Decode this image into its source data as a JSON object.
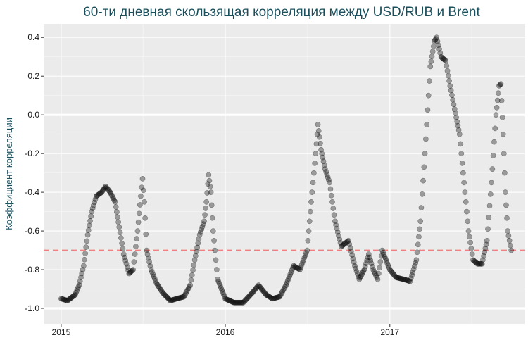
{
  "chart_data": {
    "type": "scatter",
    "title": "60-ти дневная скользящая корреляция между USD/RUB и Brent",
    "xlabel": "",
    "ylabel": "Коэффициент корреляции",
    "x_ticks": [
      "2015",
      "2016",
      "2017"
    ],
    "y_ticks": [
      "-1.0",
      "-0.8",
      "-0.6",
      "-0.4",
      "-0.2",
      "0.0",
      "0.2",
      "0.4"
    ],
    "xlim": [
      "2014-11-23",
      "2017-10-29"
    ],
    "ylim": [
      -1.08,
      0.47
    ],
    "grid": true,
    "reference_lines": [
      {
        "y": 0.0,
        "style": "solid",
        "color": "#ffffff"
      },
      {
        "y": -1.0,
        "style": "solid",
        "color": "#ffffff"
      },
      {
        "y": -0.7,
        "style": "dashed",
        "color": "#f08080"
      }
    ],
    "series": [
      {
        "points": [
          [
            "2015-01-01",
            -0.95
          ],
          [
            "2015-01-15",
            -0.96
          ],
          [
            "2015-02-01",
            -0.93
          ],
          [
            "2015-02-10",
            -0.88
          ],
          [
            "2015-02-20",
            -0.78
          ],
          [
            "2015-03-01",
            -0.62
          ],
          [
            "2015-03-10",
            -0.5
          ],
          [
            "2015-03-20",
            -0.42
          ],
          [
            "2015-04-01",
            -0.4
          ],
          [
            "2015-04-10",
            -0.37
          ],
          [
            "2015-04-20",
            -0.4
          ],
          [
            "2015-05-01",
            -0.45
          ],
          [
            "2015-05-10",
            -0.58
          ],
          [
            "2015-05-20",
            -0.72
          ],
          [
            "2015-06-01",
            -0.82
          ],
          [
            "2015-06-10",
            -0.8
          ],
          [
            "2015-06-20",
            -0.6
          ],
          [
            "2015-06-27",
            -0.42
          ],
          [
            "2015-07-01",
            -0.33
          ],
          [
            "2015-07-05",
            -0.45
          ],
          [
            "2015-07-10",
            -0.7
          ],
          [
            "2015-07-20",
            -0.8
          ],
          [
            "2015-08-01",
            -0.87
          ],
          [
            "2015-08-15",
            -0.92
          ],
          [
            "2015-09-01",
            -0.96
          ],
          [
            "2015-09-15",
            -0.95
          ],
          [
            "2015-10-01",
            -0.94
          ],
          [
            "2015-10-15",
            -0.88
          ],
          [
            "2015-10-25",
            -0.75
          ],
          [
            "2015-11-05",
            -0.62
          ],
          [
            "2015-11-15",
            -0.55
          ],
          [
            "2015-11-20",
            -0.45
          ],
          [
            "2015-11-25",
            -0.31
          ],
          [
            "2015-11-30",
            -0.4
          ],
          [
            "2015-12-05",
            -0.6
          ],
          [
            "2015-12-15",
            -0.85
          ],
          [
            "2016-01-01",
            -0.95
          ],
          [
            "2016-01-20",
            -0.97
          ],
          [
            "2016-02-10",
            -0.97
          ],
          [
            "2016-03-01",
            -0.92
          ],
          [
            "2016-03-15",
            -0.88
          ],
          [
            "2016-04-01",
            -0.93
          ],
          [
            "2016-04-15",
            -0.95
          ],
          [
            "2016-05-01",
            -0.94
          ],
          [
            "2016-05-15",
            -0.88
          ],
          [
            "2016-06-01",
            -0.78
          ],
          [
            "2016-06-15",
            -0.8
          ],
          [
            "2016-07-01",
            -0.7
          ],
          [
            "2016-07-10",
            -0.45
          ],
          [
            "2016-07-20",
            -0.2
          ],
          [
            "2016-07-25",
            -0.05
          ],
          [
            "2016-08-01",
            -0.18
          ],
          [
            "2016-08-10",
            -0.28
          ],
          [
            "2016-08-20",
            -0.35
          ],
          [
            "2016-09-01",
            -0.55
          ],
          [
            "2016-09-15",
            -0.68
          ],
          [
            "2016-10-01",
            -0.65
          ],
          [
            "2016-10-15",
            -0.78
          ],
          [
            "2016-10-25",
            -0.85
          ],
          [
            "2016-11-05",
            -0.8
          ],
          [
            "2016-11-15",
            -0.72
          ],
          [
            "2016-11-25",
            -0.8
          ],
          [
            "2016-12-05",
            -0.85
          ],
          [
            "2016-12-15",
            -0.7
          ],
          [
            "2017-01-01",
            -0.8
          ],
          [
            "2017-01-15",
            -0.84
          ],
          [
            "2017-02-01",
            -0.85
          ],
          [
            "2017-02-15",
            -0.86
          ],
          [
            "2017-03-01",
            -0.75
          ],
          [
            "2017-03-10",
            -0.55
          ],
          [
            "2017-03-20",
            -0.2
          ],
          [
            "2017-04-01",
            0.25
          ],
          [
            "2017-04-10",
            0.38
          ],
          [
            "2017-04-15",
            0.4
          ],
          [
            "2017-04-25",
            0.3
          ],
          [
            "2017-05-05",
            0.28
          ],
          [
            "2017-05-15",
            0.15
          ],
          [
            "2017-05-25",
            0.03
          ],
          [
            "2017-06-05",
            -0.1
          ],
          [
            "2017-06-15",
            -0.35
          ],
          [
            "2017-06-25",
            -0.6
          ],
          [
            "2017-07-05",
            -0.75
          ],
          [
            "2017-07-15",
            -0.77
          ],
          [
            "2017-07-25",
            -0.77
          ],
          [
            "2017-08-05",
            -0.65
          ],
          [
            "2017-08-15",
            -0.35
          ],
          [
            "2017-08-25",
            0.0
          ],
          [
            "2017-09-01",
            0.15
          ],
          [
            "2017-09-05",
            0.16
          ],
          [
            "2017-09-10",
            -0.1
          ],
          [
            "2017-09-15",
            -0.4
          ],
          [
            "2017-09-20",
            -0.6
          ],
          [
            "2017-09-28",
            -0.7
          ]
        ]
      }
    ]
  }
}
